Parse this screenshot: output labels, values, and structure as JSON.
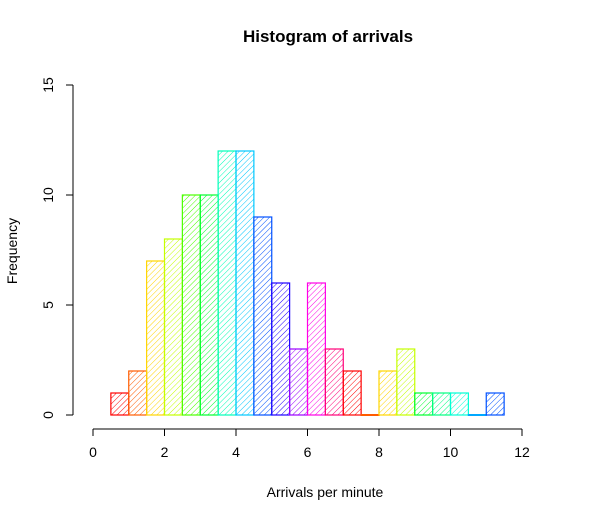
{
  "chart_data": {
    "type": "bar",
    "title": "Histogram of arrivals",
    "xlabel": "Arrivals per minute",
    "ylabel": "Frequency",
    "xlim": [
      0,
      12
    ],
    "ylim": [
      0,
      15
    ],
    "x_ticks": [
      0,
      2,
      4,
      6,
      8,
      10,
      12
    ],
    "y_ticks": [
      0,
      5,
      10,
      15
    ],
    "bin_width": 0.5,
    "bins": [
      {
        "start": 0.5,
        "end": 1.0,
        "count": 1,
        "color": "#FF0000"
      },
      {
        "start": 1.0,
        "end": 1.5,
        "count": 2,
        "color": "#FF5C00"
      },
      {
        "start": 1.5,
        "end": 2.0,
        "count": 7,
        "color": "#FFD500"
      },
      {
        "start": 2.0,
        "end": 2.5,
        "count": 8,
        "color": "#C5FF00"
      },
      {
        "start": 2.5,
        "end": 3.0,
        "count": 10,
        "color": "#4CFF00"
      },
      {
        "start": 3.0,
        "end": 3.5,
        "count": 10,
        "color": "#00FF2E"
      },
      {
        "start": 3.5,
        "end": 4.0,
        "count": 12,
        "color": "#00FFB9"
      },
      {
        "start": 4.0,
        "end": 4.5,
        "count": 12,
        "color": "#00C8FF"
      },
      {
        "start": 4.5,
        "end": 5.0,
        "count": 9,
        "color": "#0051FF"
      },
      {
        "start": 5.0,
        "end": 5.5,
        "count": 6,
        "color": "#1F00FF"
      },
      {
        "start": 5.5,
        "end": 6.0,
        "count": 3,
        "color": "#9B00FF"
      },
      {
        "start": 6.0,
        "end": 6.5,
        "count": 6,
        "color": "#FF00E6"
      },
      {
        "start": 6.5,
        "end": 7.0,
        "count": 3,
        "color": "#FF0078"
      },
      {
        "start": 7.0,
        "end": 7.5,
        "count": 2,
        "color": "#FF0000"
      },
      {
        "start": 7.5,
        "end": 8.0,
        "count": 0,
        "color": "#FF5C00"
      },
      {
        "start": 8.0,
        "end": 8.5,
        "count": 2,
        "color": "#FFD500"
      },
      {
        "start": 8.5,
        "end": 9.0,
        "count": 3,
        "color": "#C5FF00"
      },
      {
        "start": 9.0,
        "end": 9.5,
        "count": 1,
        "color": "#00FF2E"
      },
      {
        "start": 9.5,
        "end": 10.0,
        "count": 1,
        "color": "#00FF80"
      },
      {
        "start": 10.0,
        "end": 10.5,
        "count": 1,
        "color": "#00FFD5"
      },
      {
        "start": 10.5,
        "end": 11.0,
        "count": 0,
        "color": "#00A8FF"
      },
      {
        "start": 11.0,
        "end": 11.5,
        "count": 1,
        "color": "#0051FF"
      }
    ],
    "grid": false,
    "fill_pattern": "diagonal-hatch"
  }
}
